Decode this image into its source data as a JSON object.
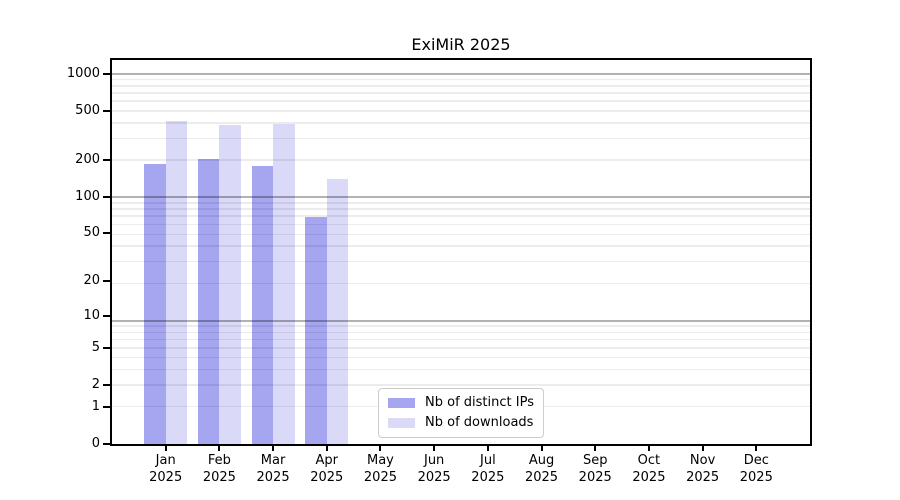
{
  "title": "ExiMiR 2025",
  "chart_data": {
    "type": "bar",
    "title": "ExiMiR 2025",
    "x_categories": [
      {
        "month": "Jan",
        "year": "2025"
      },
      {
        "month": "Feb",
        "year": "2025"
      },
      {
        "month": "Mar",
        "year": "2025"
      },
      {
        "month": "Apr",
        "year": "2025"
      },
      {
        "month": "May",
        "year": "2025"
      },
      {
        "month": "Jun",
        "year": "2025"
      },
      {
        "month": "Jul",
        "year": "2025"
      },
      {
        "month": "Aug",
        "year": "2025"
      },
      {
        "month": "Sep",
        "year": "2025"
      },
      {
        "month": "Oct",
        "year": "2025"
      },
      {
        "month": "Nov",
        "year": "2025"
      },
      {
        "month": "Dec",
        "year": "2025"
      }
    ],
    "series": [
      {
        "name": "Nb of distinct IPs",
        "color": "#a5a5f0",
        "values": [
          186,
          202,
          178,
          68,
          null,
          null,
          null,
          null,
          null,
          null,
          null,
          null
        ]
      },
      {
        "name": "Nb of downloads",
        "color": "#dadaf8",
        "values": [
          417,
          387,
          390,
          139,
          null,
          null,
          null,
          null,
          null,
          null,
          null,
          null
        ]
      }
    ],
    "yticks": [
      0,
      1,
      2,
      5,
      10,
      20,
      50,
      100,
      200,
      500,
      1000
    ],
    "yscale": "log10(value+1)",
    "ylim": [
      0,
      1300
    ],
    "xlim": [
      0,
      13
    ],
    "bar_half_width_units": 0.4,
    "grid": {
      "axis": "y",
      "major_at_plus1_powers_of_10": true,
      "minor_log_subdivisions": true
    },
    "legend_position": "lower center"
  }
}
